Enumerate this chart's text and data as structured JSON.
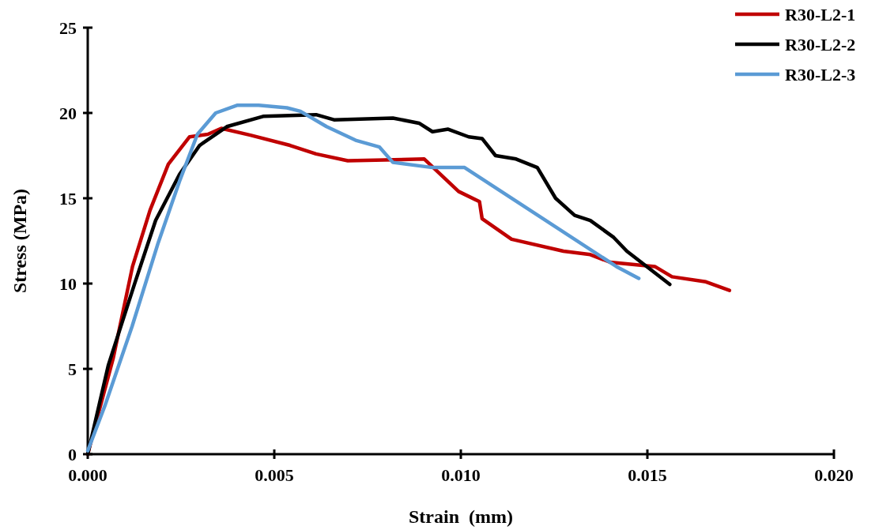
{
  "chart_data": {
    "type": "line",
    "xlabel": "Strain  (mm)",
    "ylabel": "Stress (MPa)",
    "xlim": [
      0,
      0.02
    ],
    "ylim": [
      0,
      25
    ],
    "xticks": [
      {
        "value": 0,
        "label": "0.000"
      },
      {
        "value": 0.005,
        "label": "0.005"
      },
      {
        "value": 0.01,
        "label": "0.010"
      },
      {
        "value": 0.015,
        "label": "0.015"
      },
      {
        "value": 0.02,
        "label": "0.020"
      }
    ],
    "yticks": [
      0,
      5,
      10,
      15,
      20,
      25
    ],
    "grid": false,
    "legend": "top right",
    "marker": "none",
    "line_style": "solid",
    "series": [
      {
        "name": "R30-L2-1",
        "color": "#c00000",
        "x": [
          0,
          0.0003,
          0.00068,
          0.0012,
          0.00167,
          0.00216,
          0.00273,
          0.00322,
          0.00358,
          0.00436,
          0.00542,
          0.00612,
          0.00697,
          0.00902,
          0.00994,
          0.0105,
          0.01057,
          0.01136,
          0.01275,
          0.01347,
          0.014,
          0.0152,
          0.01566,
          0.01657,
          0.0172
        ],
        "values": [
          0,
          2.5,
          5.6,
          11.0,
          14.3,
          17.0,
          18.6,
          18.75,
          19.1,
          18.7,
          18.1,
          17.6,
          17.2,
          17.3,
          15.4,
          14.8,
          13.8,
          12.6,
          11.9,
          11.7,
          11.25,
          11.0,
          10.4,
          10.1,
          9.6
        ]
      },
      {
        "name": "R30-L2-2",
        "color": "#000000",
        "x": [
          0,
          0.00055,
          0.00125,
          0.00182,
          0.00246,
          0.003,
          0.00373,
          0.0047,
          0.00612,
          0.0066,
          0.00818,
          0.00888,
          0.00924,
          0.00966,
          0.01021,
          0.01057,
          0.01093,
          0.01148,
          0.01205,
          0.01254,
          0.01305,
          0.01347,
          0.0141,
          0.01445,
          0.0156
        ],
        "values": [
          0,
          5.2,
          9.95,
          13.7,
          16.4,
          18.1,
          19.2,
          19.8,
          19.9,
          19.6,
          19.7,
          19.4,
          18.9,
          19.05,
          18.6,
          18.5,
          17.5,
          17.3,
          16.8,
          15.0,
          14.0,
          13.7,
          12.7,
          11.9,
          9.95
        ]
      },
      {
        "name": "R30-L2-3",
        "color": "#5b9bd5",
        "x": [
          0,
          0.00047,
          0.00119,
          0.00189,
          0.00246,
          0.00294,
          0.00343,
          0.004,
          0.00458,
          0.00534,
          0.0057,
          0.0064,
          0.00718,
          0.00782,
          0.00818,
          0.00924,
          0.0101,
          0.01417,
          0.01477
        ],
        "values": [
          0.2,
          2.9,
          7.5,
          12.4,
          16.0,
          18.75,
          20.0,
          20.45,
          20.45,
          20.3,
          20.1,
          19.2,
          18.4,
          18.0,
          17.1,
          16.8,
          16.8,
          11.0,
          10.3
        ]
      }
    ]
  }
}
